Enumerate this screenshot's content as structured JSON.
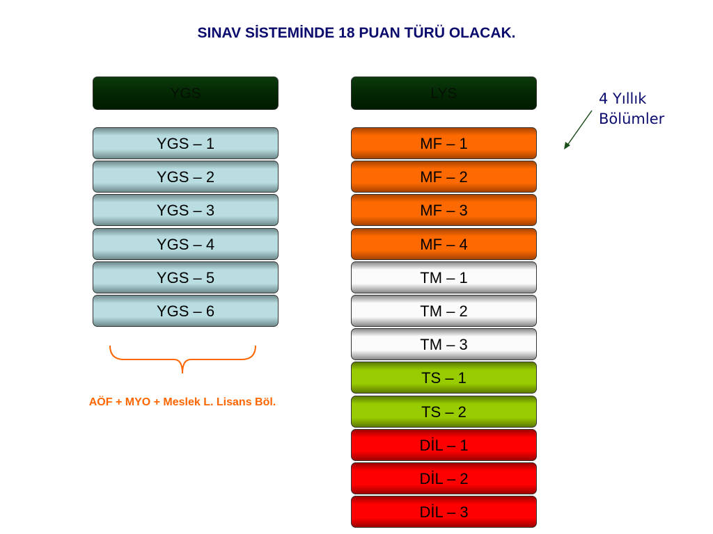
{
  "title": "SINAV SİSTEMİNDE 18 PUAN TÜRÜ OLACAK.",
  "ygs": {
    "header": "YGS",
    "items": [
      "YGS – 1",
      "YGS – 2",
      "YGS – 3",
      "YGS – 4",
      "YGS – 5",
      "YGS – 6"
    ],
    "color": "#b9dde0",
    "brace_label": "AÖF + MYO + Meslek L. Lisans Böl."
  },
  "lys": {
    "header": "LYS",
    "items": [
      {
        "label": "MF – 1",
        "color": "orange"
      },
      {
        "label": "MF – 2",
        "color": "orange"
      },
      {
        "label": "MF – 3",
        "color": "orange"
      },
      {
        "label": "MF – 4",
        "color": "orange"
      },
      {
        "label": "TM – 1",
        "color": "white"
      },
      {
        "label": "TM – 2",
        "color": "white"
      },
      {
        "label": "TM – 3",
        "color": "white"
      },
      {
        "label": "TS – 1",
        "color": "green"
      },
      {
        "label": "TS – 2",
        "color": "green"
      },
      {
        "label": "DİL – 1",
        "color": "red"
      },
      {
        "label": "DİL – 2",
        "color": "red"
      },
      {
        "label": "DİL – 3",
        "color": "red"
      }
    ],
    "note_line1": "4 Yıllık",
    "note_line2": "Bölümler"
  },
  "colors": {
    "title": "#0b0b6e",
    "header": "#032803",
    "brace": "#ff6600",
    "arrow": "#1a4d1a"
  }
}
